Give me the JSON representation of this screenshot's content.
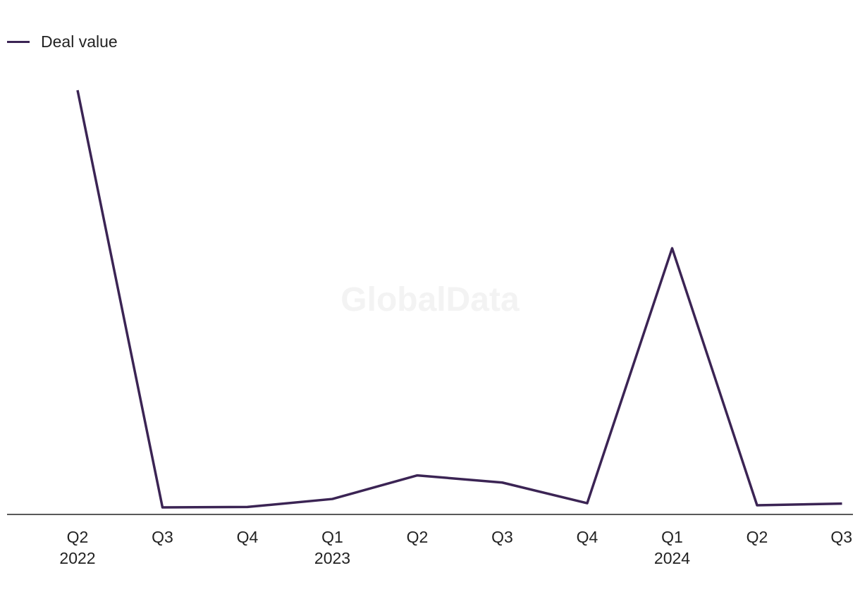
{
  "watermark": "GlobalData",
  "legend": {
    "label": "Deal value",
    "color": "#3b2454"
  },
  "chart_data": {
    "type": "line",
    "title": "",
    "xlabel": "",
    "ylabel": "",
    "categories": [
      "Q2 2022",
      "Q3 2022",
      "Q4 2022",
      "Q1 2023",
      "Q2 2023",
      "Q3 2023",
      "Q4 2023",
      "Q1 2024",
      "Q2 2024",
      "Q3 2024"
    ],
    "tick_labels": [
      {
        "quarter": "Q2",
        "year": "2022"
      },
      {
        "quarter": "Q3",
        "year": ""
      },
      {
        "quarter": "Q4",
        "year": ""
      },
      {
        "quarter": "Q1",
        "year": "2023"
      },
      {
        "quarter": "Q2",
        "year": ""
      },
      {
        "quarter": "Q3",
        "year": ""
      },
      {
        "quarter": "Q4",
        "year": ""
      },
      {
        "quarter": "Q1",
        "year": "2024"
      },
      {
        "quarter": "Q2",
        "year": ""
      },
      {
        "quarter": "Q3",
        "year": ""
      }
    ],
    "series": [
      {
        "name": "Deal value",
        "color": "#3b2454",
        "values": [
          100,
          1,
          1.1,
          3,
          8.6,
          6.9,
          2,
          62.5,
          1.5,
          1.9
        ]
      }
    ],
    "ylim": [
      0,
      100
    ],
    "grid": false,
    "legend_position": "top-left"
  }
}
